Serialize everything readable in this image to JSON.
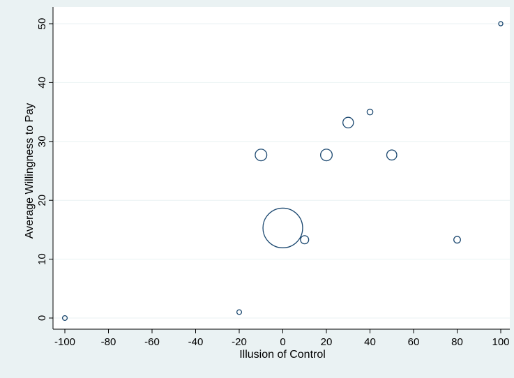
{
  "chart_data": {
    "type": "scatter",
    "title": "",
    "xlabel": "Illusion of Control",
    "ylabel": "Average Willingness to Pay",
    "xlim": [
      -100,
      100
    ],
    "ylim": [
      0,
      50
    ],
    "x_ticks": [
      -100,
      -80,
      -60,
      -40,
      -20,
      0,
      20,
      40,
      60,
      80,
      100
    ],
    "y_ticks": [
      0,
      10,
      20,
      30,
      40,
      50
    ],
    "grid": "horizontal",
    "marker": "hollow circle, size proportional to weight",
    "colors": {
      "plot_background": "#ffffff",
      "outer_background": "#eaf2f3",
      "marker_stroke": "#1a476f",
      "grid": "#eaf2f3"
    },
    "points": [
      {
        "x": -100,
        "y": 0,
        "weight": 1
      },
      {
        "x": -20,
        "y": 1,
        "weight": 1
      },
      {
        "x": -10,
        "y": 27.7,
        "weight": 6
      },
      {
        "x": 0,
        "y": 15.3,
        "weight": 70
      },
      {
        "x": 10,
        "y": 13.3,
        "weight": 3
      },
      {
        "x": 20,
        "y": 27.7,
        "weight": 6
      },
      {
        "x": 30,
        "y": 33.2,
        "weight": 5
      },
      {
        "x": 40,
        "y": 35,
        "weight": 1.5
      },
      {
        "x": 50,
        "y": 27.7,
        "weight": 4.5
      },
      {
        "x": 80,
        "y": 13.3,
        "weight": 2
      },
      {
        "x": 100,
        "y": 50,
        "weight": 0.8
      }
    ]
  }
}
